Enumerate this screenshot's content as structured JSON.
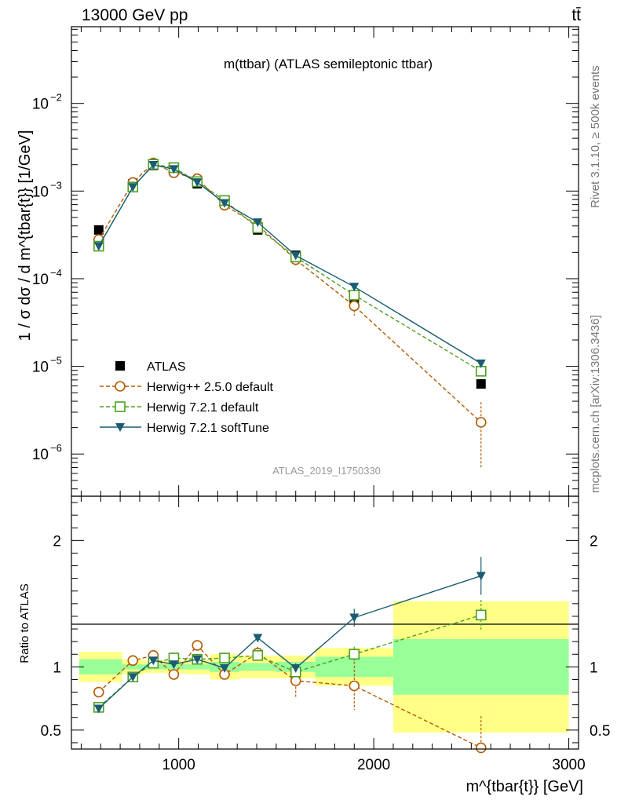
{
  "header": {
    "energy_label": "13000 GeV pp",
    "process_label": "tt̄"
  },
  "side_labels": {
    "rivet": "Rivet 3.1.10, ≥ 500k events",
    "mcplots": "mcplots.cern.ch [arXiv:1306.3436]"
  },
  "chart_data": {
    "type": "line",
    "title": "m(ttbar) (ATLAS semileptonic ttbar)",
    "analysis_id": "ATLAS_2019_I1750330",
    "xlabel": "m^{tbar{t}} [GeV]",
    "ylabel": "1 / σ dσ / d m^{tbar{t}} [1/GeV]",
    "ratio_ylabel": "Ratio to ATLAS",
    "xlim": [
      450,
      3050
    ],
    "ylim": [
      3.3e-07,
      0.075
    ],
    "ratio_ylim": [
      0.35,
      2.35
    ],
    "yscale": "log",
    "x_ticks": [
      1000,
      2000,
      3000
    ],
    "x_tick_labels": [
      "1000",
      "2000",
      "3000"
    ],
    "y_ticks": [
      1e-06,
      1e-05,
      0.0001,
      0.001,
      0.01
    ],
    "y_tick_labels": [
      {
        "base": "10",
        "exp": "−6"
      },
      {
        "base": "10",
        "exp": "−5"
      },
      {
        "base": "10",
        "exp": "−4"
      },
      {
        "base": "10",
        "exp": "−3"
      },
      {
        "base": "10",
        "exp": "−2"
      }
    ],
    "ratio_ticks": [
      0.5,
      1,
      2
    ],
    "ratio_tick_labels": [
      "0.5",
      "1",
      "2"
    ],
    "bin_edges": [
      490,
      710,
      820,
      920,
      1030,
      1160,
      1310,
      1500,
      1700,
      2100,
      3000
    ],
    "x": [
      590,
      765,
      870,
      975,
      1095,
      1235,
      1405,
      1600,
      1900,
      2550
    ],
    "series": [
      {
        "name": "ATLAS",
        "style": "data",
        "color": "#000000",
        "values": [
          0.00036,
          0.00121,
          0.00196,
          0.00172,
          0.00121,
          0.00073,
          0.00036,
          0.000185,
          5.9e-05,
          6.3e-06
        ],
        "stat_band": [
          0.06,
          0.02,
          0.02,
          0.02,
          0.02,
          0.04,
          0.03,
          0.04,
          0.08,
          0.22
        ],
        "total_band": [
          0.12,
          0.06,
          0.05,
          0.05,
          0.06,
          0.1,
          0.09,
          0.09,
          0.15,
          0.52
        ]
      },
      {
        "name": "Herwig++ 2.5.0 default",
        "style": "dashed-circle",
        "color": "#b35a00",
        "values": [
          0.00028,
          0.00125,
          0.00209,
          0.00162,
          0.00138,
          0.00069,
          0.00041,
          0.000165,
          4.9e-05,
          2.3e-06
        ],
        "ratio": [
          0.8,
          1.05,
          1.09,
          0.94,
          1.17,
          0.94,
          1.11,
          0.89,
          0.85,
          0.36
        ],
        "ratio_err": [
          0.04,
          0.03,
          0.03,
          0.03,
          0.04,
          0.04,
          0.05,
          0.14,
          0.19,
          0.25
        ]
      },
      {
        "name": "Herwig 7.2.1 default",
        "style": "dashed-square",
        "color": "#4ca020",
        "values": [
          0.000235,
          0.00111,
          0.00202,
          0.00185,
          0.00128,
          0.00078,
          0.00038,
          0.000177,
          6.5e-05,
          8.8e-06
        ],
        "ratio": [
          0.68,
          0.92,
          1.03,
          1.07,
          1.06,
          1.07,
          1.09,
          0.96,
          1.1,
          1.41
        ],
        "ratio_err": [
          0.03,
          0.03,
          0.02,
          0.02,
          0.02,
          0.03,
          0.03,
          0.03,
          0.06,
          0.12
        ]
      },
      {
        "name": "Herwig 7.2.1 softTune",
        "style": "solid-triangle",
        "color": "#1a5c72",
        "values": [
          0.000235,
          0.00111,
          0.00199,
          0.00178,
          0.00126,
          0.00073,
          0.00044,
          0.000184,
          8.1e-05,
          1.08e-05
        ],
        "ratio": [
          0.67,
          0.92,
          1.05,
          1.02,
          1.06,
          0.99,
          1.23,
          0.99,
          1.39,
          1.72
        ],
        "ratio_err": [
          0.03,
          0.02,
          0.02,
          0.02,
          0.02,
          0.02,
          0.03,
          0.03,
          0.07,
          0.15
        ]
      }
    ]
  }
}
